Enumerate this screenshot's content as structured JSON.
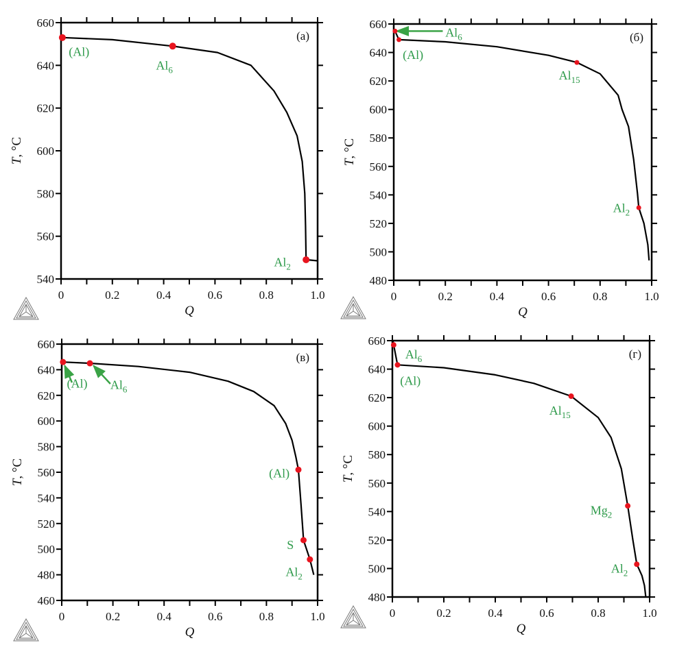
{
  "colors": {
    "curve": "#000000",
    "point": "#e8141e",
    "annotation": "#2e9a4a",
    "arrow": "#3aa346"
  },
  "chart_data": [
    {
      "type": "line",
      "panel_label": "(a)",
      "xlabel": "Q",
      "ylabel_var": "T",
      "ylabel_unit": ", °C",
      "xlim": [
        0,
        1
      ],
      "ylim": [
        540,
        660
      ],
      "xticks": [
        0,
        0.2,
        0.4,
        0.6,
        0.8,
        1.0
      ],
      "xtick_labels": [
        "0",
        "0.2",
        "0.4",
        "0.6",
        "0.8",
        "1.0"
      ],
      "xminor": [
        0.1,
        0.3,
        0.5,
        0.7,
        0.9
      ],
      "yticks": [
        540,
        560,
        580,
        600,
        620,
        640,
        660
      ],
      "ytick_labels": [
        "540",
        "560",
        "580",
        "600",
        "620",
        "640",
        "660"
      ],
      "curve": [
        [
          0.005,
          653
        ],
        [
          0.2,
          652
        ],
        [
          0.435,
          649
        ],
        [
          0.61,
          646
        ],
        [
          0.74,
          640
        ],
        [
          0.83,
          628
        ],
        [
          0.88,
          618
        ],
        [
          0.92,
          607
        ],
        [
          0.94,
          595
        ],
        [
          0.95,
          580
        ],
        [
          0.953,
          565
        ],
        [
          0.955,
          549
        ],
        [
          1.0,
          548.5
        ]
      ],
      "points": [
        [
          0.005,
          653
        ],
        [
          0.435,
          649
        ],
        [
          0.955,
          549
        ]
      ],
      "annotations": [
        {
          "text": "(Al)",
          "sub": "",
          "x": 0.03,
          "y": 644.5
        },
        {
          "text": "Al",
          "sub": "6",
          "x": 0.37,
          "y": 638
        },
        {
          "text": "Al",
          "sub": "2",
          "x": 0.83,
          "y": 546
        }
      ]
    },
    {
      "type": "line",
      "panel_label": "(б)",
      "xlabel": "Q",
      "ylabel_var": "T",
      "ylabel_unit": ", °C",
      "xlim": [
        0,
        1
      ],
      "ylim": [
        480,
        660
      ],
      "xticks": [
        0,
        0.2,
        0.4,
        0.6,
        0.8,
        1.0
      ],
      "xtick_labels": [
        "0",
        "0.2",
        "0.4",
        "0.6",
        "0.8",
        "1.0"
      ],
      "xminor": [
        0.1,
        0.3,
        0.5,
        0.7,
        0.9
      ],
      "yticks": [
        480,
        500,
        520,
        540,
        560,
        580,
        600,
        620,
        640,
        660
      ],
      "ytick_labels": [
        "480",
        "500",
        "520",
        "540",
        "560",
        "580",
        "600",
        "620",
        "640",
        "660"
      ],
      "curve": [
        [
          0.005,
          655
        ],
        [
          0.02,
          649
        ],
        [
          0.2,
          647.5
        ],
        [
          0.4,
          644
        ],
        [
          0.6,
          638
        ],
        [
          0.71,
          633
        ],
        [
          0.8,
          625
        ],
        [
          0.87,
          610
        ],
        [
          0.885,
          600
        ],
        [
          0.91,
          588
        ],
        [
          0.93,
          565
        ],
        [
          0.945,
          541
        ],
        [
          0.95,
          531
        ],
        [
          0.97,
          520
        ],
        [
          0.985,
          505
        ],
        [
          0.99,
          494
        ]
      ],
      "points": [
        [
          0.005,
          655
        ],
        [
          0.02,
          649
        ],
        [
          0.71,
          633
        ],
        [
          0.95,
          531
        ]
      ],
      "annotations": [
        {
          "text": "Al",
          "sub": "6",
          "x": 0.2,
          "y": 651,
          "arrow": [
            [
              0.19,
              655
            ],
            [
              0.012,
              655
            ]
          ]
        },
        {
          "text": "(Al)",
          "sub": "",
          "x": 0.035,
          "y": 635.5
        },
        {
          "text": "Al",
          "sub": "15",
          "x": 0.64,
          "y": 621
        },
        {
          "text": "Al",
          "sub": "2",
          "x": 0.85,
          "y": 528
        }
      ]
    },
    {
      "type": "line",
      "panel_label": "(в)",
      "xlabel": "Q",
      "ylabel_var": "T",
      "ylabel_unit": ", °C",
      "xlim": [
        0,
        1
      ],
      "ylim": [
        460,
        660
      ],
      "xticks": [
        0,
        0.2,
        0.4,
        0.6,
        0.8,
        1.0
      ],
      "xtick_labels": [
        "0",
        "0.2",
        "0.4",
        "0.6",
        "0.8",
        "1.0"
      ],
      "xminor": [
        0.1,
        0.3,
        0.5,
        0.7,
        0.9
      ],
      "yticks": [
        460,
        480,
        500,
        520,
        540,
        560,
        580,
        600,
        620,
        640,
        660
      ],
      "ytick_labels": [
        "460",
        "480",
        "500",
        "520",
        "540",
        "560",
        "580",
        "600",
        "620",
        "640",
        "660"
      ],
      "curve": [
        [
          0.005,
          646
        ],
        [
          0.11,
          645
        ],
        [
          0.3,
          642.5
        ],
        [
          0.5,
          638
        ],
        [
          0.65,
          631
        ],
        [
          0.75,
          623
        ],
        [
          0.83,
          612
        ],
        [
          0.875,
          598
        ],
        [
          0.9,
          585
        ],
        [
          0.915,
          572
        ],
        [
          0.925,
          562
        ],
        [
          0.935,
          535
        ],
        [
          0.945,
          507
        ],
        [
          0.97,
          492
        ],
        [
          0.985,
          480
        ]
      ],
      "points": [
        [
          0.005,
          646
        ],
        [
          0.11,
          645
        ],
        [
          0.925,
          562
        ],
        [
          0.945,
          507
        ],
        [
          0.97,
          492
        ]
      ],
      "annotations": [
        {
          "text": "(Al)",
          "sub": "",
          "x": 0.02,
          "y": 626,
          "arrow": [
            [
              0.04,
              630
            ],
            [
              0.012,
              643
            ]
          ]
        },
        {
          "text": "Al",
          "sub": "6",
          "x": 0.19,
          "y": 625,
          "arrow": [
            [
              0.19,
              629
            ],
            [
              0.125,
              643
            ]
          ]
        },
        {
          "text": "(Al)",
          "sub": "",
          "x": 0.81,
          "y": 556
        },
        {
          "text": "S",
          "sub": "",
          "x": 0.88,
          "y": 500
        },
        {
          "text": "Al",
          "sub": "2",
          "x": 0.875,
          "y": 479
        }
      ]
    },
    {
      "type": "line",
      "panel_label": "(г)",
      "xlabel": "Q",
      "ylabel_var": "T",
      "ylabel_unit": ", °C",
      "xlim": [
        0,
        1
      ],
      "ylim": [
        480,
        660
      ],
      "xticks": [
        0,
        0.2,
        0.4,
        0.6,
        0.8,
        1.0
      ],
      "xtick_labels": [
        "0",
        "0.2",
        "0.4",
        "0.6",
        "0.8",
        "1.0"
      ],
      "xminor": [
        0.1,
        0.3,
        0.5,
        0.7,
        0.9
      ],
      "yticks": [
        480,
        500,
        520,
        540,
        560,
        580,
        600,
        620,
        640,
        660
      ],
      "ytick_labels": [
        "480",
        "500",
        "520",
        "540",
        "560",
        "580",
        "600",
        "620",
        "640",
        "660"
      ],
      "curve": [
        [
          0.002,
          660
        ],
        [
          0.005,
          657
        ],
        [
          0.02,
          643
        ],
        [
          0.2,
          641
        ],
        [
          0.4,
          636
        ],
        [
          0.55,
          630
        ],
        [
          0.695,
          621
        ],
        [
          0.8,
          606
        ],
        [
          0.85,
          592
        ],
        [
          0.89,
          570
        ],
        [
          0.915,
          544
        ],
        [
          0.935,
          520
        ],
        [
          0.95,
          503
        ],
        [
          0.97,
          495
        ],
        [
          0.98,
          488
        ],
        [
          0.985,
          480
        ]
      ],
      "points": [
        [
          0.005,
          657
        ],
        [
          0.02,
          643
        ],
        [
          0.695,
          621
        ],
        [
          0.915,
          544
        ],
        [
          0.95,
          503
        ]
      ],
      "annotations": [
        {
          "text": "Al",
          "sub": "6",
          "x": 0.05,
          "y": 647.5
        },
        {
          "text": "(Al)",
          "sub": "",
          "x": 0.03,
          "y": 629
        },
        {
          "text": "Al",
          "sub": "15",
          "x": 0.61,
          "y": 608
        },
        {
          "text": "Mg",
          "sub": "2",
          "x": 0.77,
          "y": 538
        },
        {
          "text": "Al",
          "sub": "2",
          "x": 0.85,
          "y": 497
        }
      ]
    }
  ]
}
